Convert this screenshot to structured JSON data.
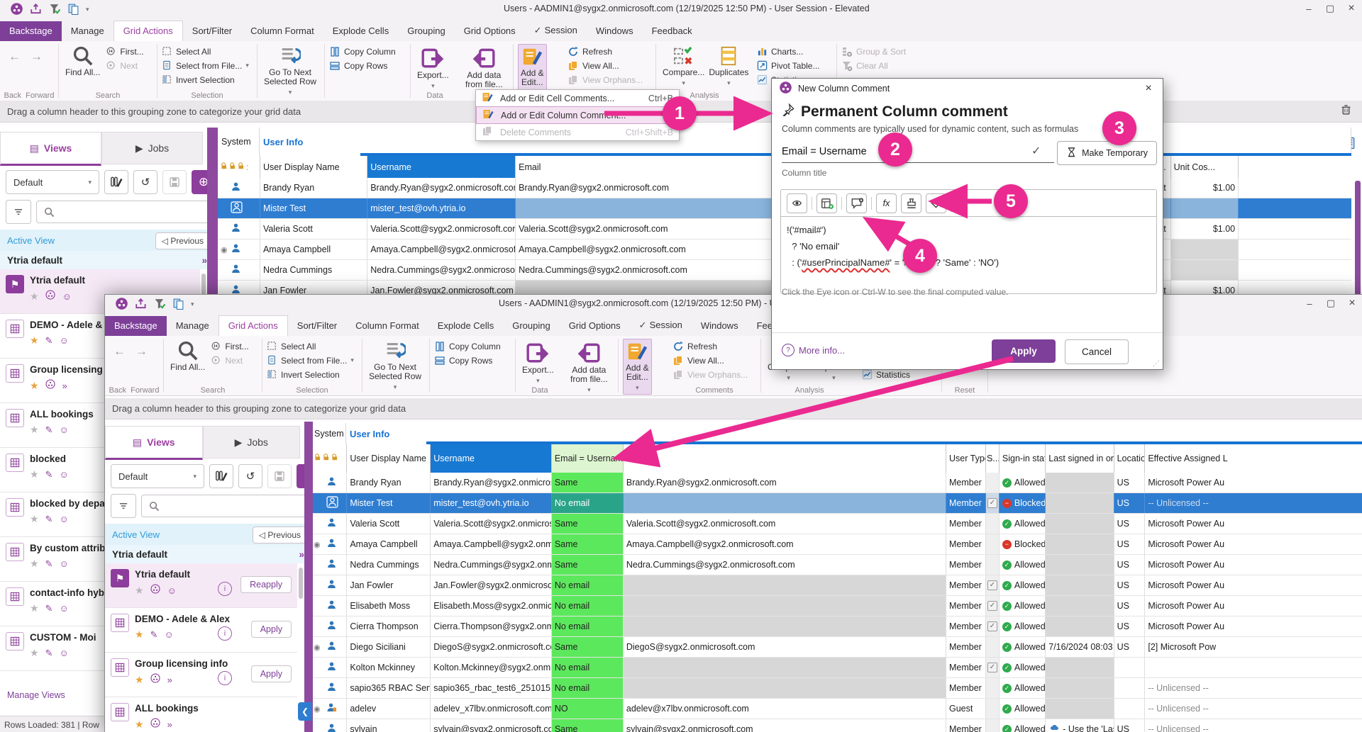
{
  "app": {
    "back_title": "Users - AADMIN1@sygx2.onmicrosoft.com (12/19/2025 12:50 PM) - User Session - Elevated",
    "fore_title": "Users - AADMIN1@sygx2.onmicrosoft.com (12/19/2025 12:50 PM) - User Session - Elevated",
    "status_bar": "Rows Loaded: 381 | Row",
    "grouping_bar": "Drag a column header to this grouping zone to categorize your grid data"
  },
  "icons": {
    "minimize": "–",
    "maximize": "▢",
    "close": "×",
    "collapse_ribbon": "^",
    "help": "?",
    "dropdown": "▾",
    "chevron_double": "»",
    "radio": "◉",
    "star": "★",
    "smiley": "☺",
    "flag": "⚑",
    "undo": "↺",
    "back": "←",
    "forward": "→",
    "previous": "◁",
    "collapse_left": "❮",
    "fx": "fx"
  },
  "ribbon": {
    "tabs": [
      {
        "label": "Backstage",
        "style": "backstage"
      },
      {
        "label": "Manage"
      },
      {
        "label": "Grid Actions",
        "style": "active"
      },
      {
        "label": "Sort/Filter"
      },
      {
        "label": "Column Format"
      },
      {
        "label": "Explode Cells"
      },
      {
        "label": "Grouping"
      },
      {
        "label": "Grid Options"
      },
      {
        "label": "Session",
        "check": true
      },
      {
        "label": "Windows"
      },
      {
        "label": "Feedback"
      }
    ],
    "back_label": "Back",
    "forward_label": "Forward",
    "find_all": "Find All...",
    "first": "First...",
    "next": "Next",
    "select_all": "Select All",
    "select_from_file": "Select from File...",
    "invert_selection": "Invert Selection",
    "go_to_next": "Go To Next\nSelected Row",
    "copy_column": "Copy Column",
    "copy_rows": "Copy Rows",
    "export": "Export...",
    "add_data": "Add data\nfrom file...",
    "add_edit": "Add &\nEdit...",
    "refresh": "Refresh",
    "view_all": "View All...",
    "view_orphans": "View Orphans...",
    "compare": "Compare...",
    "duplicates": "Duplicates",
    "charts": "Charts...",
    "pivot": "Pivot Table...",
    "statistics": "Statistics",
    "group_sort": "Group & Sort",
    "clear_all": "Clear All",
    "grid_button": "Grid",
    "groups": {
      "search": "Search",
      "selection": "Selection",
      "data": "Data",
      "comments": "Comments",
      "analysis": "Analysis",
      "reset": "Reset"
    }
  },
  "menu": {
    "items": [
      {
        "label": "Add or Edit Cell Comments...",
        "shortcut": "Ctrl+B"
      },
      {
        "label": "Add or Edit Column Comment...",
        "shortcut": "",
        "highlight": true
      },
      {
        "label": "Delete Comments",
        "shortcut": "Ctrl+Shift+B",
        "disabled": true
      }
    ]
  },
  "sidebar": {
    "views_tab": "Views",
    "jobs_tab": "Jobs",
    "default_label": "Default",
    "search_placeholder": "Search",
    "active_view_label": "Active View",
    "previous_label": "Previous",
    "active_view_name": "Ytria default",
    "manage_views": "Manage Views",
    "back_items": [
      {
        "label": "Ytria default",
        "flag": true,
        "active": true,
        "star": "gray",
        "i2": "ytria",
        "i3": "smiley"
      },
      {
        "label": "DEMO - Adele &",
        "star": "gold",
        "i2": "pen",
        "i3": "smiley"
      },
      {
        "label": "Group licensing i",
        "star": "gold",
        "i2": "ytria",
        "i3": "chev"
      },
      {
        "label": "ALL bookings",
        "star": "gray",
        "i2": "pen",
        "i3": "smiley"
      },
      {
        "label": "blocked",
        "star": "gray",
        "i2": "pen",
        "i3": "smiley"
      },
      {
        "label": "blocked by depar",
        "star": "gray",
        "i2": "pen",
        "i3": "smiley"
      },
      {
        "label": "By custom attribu",
        "star": "gray",
        "i2": "pen",
        "i3": "smiley"
      },
      {
        "label": "contact-info hybr",
        "star": "gray",
        "i2": "pen",
        "i3": "smiley"
      },
      {
        "label": "CUSTOM - Moi",
        "star": "gray",
        "i2": "pen",
        "i3": "smiley"
      }
    ],
    "fore_items": [
      {
        "label": "Ytria default",
        "flag": true,
        "active": true,
        "star": "gray",
        "i2": "ytria",
        "i3": "smiley",
        "action": "Reapply"
      },
      {
        "label": "DEMO - Adele & Alex",
        "star": "gold",
        "i2": "pen",
        "i3": "smiley",
        "action": "Apply"
      },
      {
        "label": "Group licensing info",
        "star": "gold",
        "i2": "ytria",
        "i3": "chev",
        "action": "Apply"
      },
      {
        "label": "ALL bookings",
        "star": "gold",
        "i2": "ytria",
        "i3": "chev"
      }
    ]
  },
  "grid": {
    "band_system": "System",
    "band_userinfo": "User Info",
    "headers": {
      "display": "User Display Name",
      "username": "Username",
      "cmp": "Email = Username",
      "email": "Email",
      "type": "User Type",
      "s": "S...",
      "signin": "Sign-in status",
      "last": "Last signed in on - ...",
      "loc": "Locatio...",
      "lic": "Effective Assigned L",
      "right_a": "n...",
      "right_b": "Unit Cos..."
    },
    "back_rows": [
      {
        "display": "Brandy Ryan",
        "username": "Brandy.Ryan@sygx2.onmicrosoft.com",
        "email": "Brandy.Ryan@sygx2.onmicrosoft.com",
        "ra": "nat",
        "rb": "$1.00"
      },
      {
        "sel": true,
        "display": "Mister Test",
        "username": "mister_test@ovh.ytria.io",
        "email": ""
      },
      {
        "display": "Valeria Scott",
        "username": "Valeria.Scott@sygx2.onmicrosoft.com",
        "email": "Valeria.Scott@sygx2.onmicrosoft.com",
        "ra": "nat",
        "rb": "$1.00"
      },
      {
        "radio": true,
        "display": "Amaya Campbell",
        "username": "Amaya.Campbell@sygx2.onmicrosoft.com",
        "email": "Amaya.Campbell@sygx2.onmicrosoft.com"
      },
      {
        "display": "Nedra Cummings",
        "username": "Nedra.Cummings@sygx2.onmicrosoft.com",
        "email": "Nedra.Cummings@sygx2.onmicrosoft.com"
      },
      {
        "display": "Jan Fowler",
        "username": "Jan.Fowler@sygx2.onmicrosoft.com",
        "email": "",
        "egray": true,
        "ra": "nat",
        "rb": "$1.00"
      }
    ],
    "fore_rows": [
      {
        "display": "Brandy Ryan",
        "username": "Brandy.Ryan@sygx2.onmicrosoft.com",
        "cmp": "Same",
        "email": "Brandy.Ryan@sygx2.onmicrosoft.com",
        "type": "Member",
        "signin": "Allowed",
        "lgray": true,
        "loc": "US",
        "lic": "Microsoft Power Au"
      },
      {
        "sel": true,
        "display": "Mister Test",
        "username": "mister_test@ovh.ytria.io",
        "cmp": "No email",
        "email": "",
        "type": "Member",
        "chk": true,
        "signin": "Blocked",
        "lgray": true,
        "loc": "US",
        "lic": "-- Unlicensed --"
      },
      {
        "display": "Valeria Scott",
        "username": "Valeria.Scott@sygx2.onmicrosoft.com",
        "cmp": "Same",
        "email": "Valeria.Scott@sygx2.onmicrosoft.com",
        "type": "Member",
        "signin": "Allowed",
        "lgray": true,
        "loc": "US",
        "lic": "Microsoft Power Au"
      },
      {
        "radio": true,
        "display": "Amaya Campbell",
        "username": "Amaya.Campbell@sygx2.onmicrosoft.com",
        "cmp": "Same",
        "email": "Amaya.Campbell@sygx2.onmicrosoft.com",
        "type": "Member",
        "signin": "Blocked",
        "lgray": true,
        "loc": "US",
        "lic": "Microsoft Power Au"
      },
      {
        "display": "Nedra Cummings",
        "username": "Nedra.Cummings@sygx2.onmicrosoft.com",
        "cmp": "Same",
        "email": "Nedra.Cummings@sygx2.onmicrosoft.com",
        "type": "Member",
        "signin": "Allowed",
        "lgray": true,
        "loc": "US",
        "lic": "Microsoft Power Au"
      },
      {
        "display": "Jan Fowler",
        "username": "Jan.Fowler@sygx2.onmicrosoft.com",
        "cmp": "No email",
        "email": "",
        "egray": true,
        "type": "Member",
        "chk": true,
        "signin": "Allowed",
        "lgray": true,
        "loc": "US",
        "lic": "Microsoft Power Au"
      },
      {
        "display": "Elisabeth Moss",
        "username": "Elisabeth.Moss@sygx2.onmicrosoft.com",
        "cmp": "No email",
        "email": "",
        "egray": true,
        "type": "Member",
        "chk": true,
        "signin": "Allowed",
        "lgray": true,
        "loc": "US",
        "lic": "Microsoft Power Au"
      },
      {
        "display": "Cierra Thompson",
        "username": "Cierra.Thompson@sygx2.onmicrosoft.com",
        "cmp": "No email",
        "email": "",
        "egray": true,
        "type": "Member",
        "chk": true,
        "signin": "Allowed",
        "lgray": true,
        "loc": "US",
        "lic": "Microsoft Power Au"
      },
      {
        "radio": true,
        "display": "Diego Siciliani",
        "username": "DiegoS@sygx2.onmicrosoft.com",
        "cmp": "Same",
        "email": "DiegoS@sygx2.onmicrosoft.com",
        "type": "Member",
        "signin": "Allowed",
        "last": "7/16/2024 08:03 PM",
        "loc": "US",
        "lic": "[2] Microsoft Pow"
      },
      {
        "display": "Kolton Mckinney",
        "username": "Kolton.Mckinney@sygx2.onmicrosoft.com",
        "cmp": "No email",
        "email": "",
        "egray": true,
        "type": "Member",
        "chk": true,
        "signin": "Allowed",
        "lgray": true,
        "loc": "",
        "lic": ""
      },
      {
        "display": "sapio365 RBAC Service Accou",
        "username": "sapio365_rbac_test6_251015165745@ovh.yt",
        "cmp": "No email",
        "email": "",
        "egray": true,
        "type": "Member",
        "signin": "Allowed",
        "lgray": true,
        "loc": "",
        "lic": "-- Unlicensed --"
      },
      {
        "radio": true,
        "guest": true,
        "display": "adelev",
        "username": "adelev_x7lbv.onmicrosoft.com#EXT#@sygx",
        "cmp": "NO",
        "email": "adelev@x7lbv.onmicrosoft.com",
        "type": "Guest",
        "signin": "Allowed",
        "lgray": true,
        "loc": "",
        "lic": "-- Unlicensed --"
      },
      {
        "display": "sylvain",
        "username": "sylvain@sygx2.onmicrosoft.com",
        "cmp": "Same",
        "email": "sylvain@sygx2.onmicrosoft.com",
        "type": "Member",
        "signin": "Allowed",
        "cloud": true,
        "last": "- Use the 'Last Sig",
        "loc": "US",
        "lic": "-- Unlicensed --"
      }
    ]
  },
  "dialog": {
    "window_title": "New Column Comment",
    "heading": "Permanent Column comment",
    "subtitle": "Column comments are typically used for dynamic content, such as formulas",
    "title_value": "Email = Username",
    "title_label": "Column title",
    "make_temporary": "Make Temporary",
    "formula": [
      {
        "t": "!('#mail#')"
      },
      {
        "t": "  ? 'No email'"
      },
      {
        "pre": "  : ('",
        "squiggle": "#userPrincipalName#",
        "post": "' = '#mail#' ? 'Same' : 'NO')"
      }
    ],
    "hint": "Click the Eye icon or Ctrl-W to see the final computed value.",
    "more_info": "More info...",
    "apply": "Apply",
    "cancel": "Cancel"
  },
  "annotations": {
    "n1": "1",
    "n2": "2",
    "n3": "3",
    "n4": "4",
    "n5": "5"
  }
}
